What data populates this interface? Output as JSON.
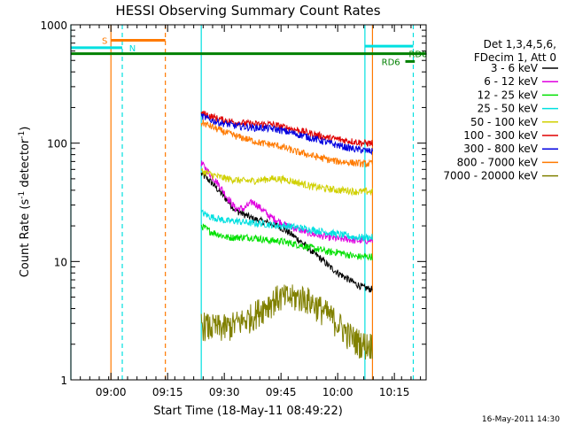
{
  "chart_data": {
    "type": "line",
    "title": "HESSI Observing Summary Count Rates",
    "xlabel": "Start Time (18-May-11 08:49:22)",
    "ylabel_parts": [
      "Count Rate (s",
      "-1",
      " detector",
      "-1",
      ")"
    ],
    "yscale": "log",
    "ylim": [
      1,
      1000
    ],
    "xlim_minutes": [
      0,
      94
    ],
    "x_ticks": [
      {
        "label": "09:00",
        "minute": 10.6
      },
      {
        "label": "09:15",
        "minute": 25.6
      },
      {
        "label": "09:30",
        "minute": 40.6
      },
      {
        "label": "09:45",
        "minute": 55.6
      },
      {
        "label": "10:00",
        "minute": 70.6
      },
      {
        "label": "10:15",
        "minute": 85.6
      }
    ],
    "y_ticks": [
      {
        "label": "1",
        "value": 1
      },
      {
        "label": "10",
        "value": 10
      },
      {
        "label": "100",
        "value": 100
      },
      {
        "label": "1000",
        "value": 1000
      }
    ],
    "legend_header": [
      "Det 1,3,4,5,6,",
      "FDecim 1, Att 0"
    ],
    "legend_position": "right",
    "data_start_minute": 34.5,
    "data_end_minute": 79.8,
    "series": [
      {
        "name": "3 - 6 keV",
        "color": "#000000",
        "values": [
          55,
          48,
          40,
          33,
          27,
          25,
          23,
          22,
          21,
          20,
          18,
          16,
          14,
          12,
          10.5,
          9,
          8,
          7.2,
          6.5,
          6,
          5.8
        ]
      },
      {
        "name": "6 - 12 keV",
        "color": "#e000e0",
        "values": [
          68,
          55,
          45,
          35,
          28,
          28,
          32,
          28,
          24,
          22,
          20,
          19,
          18,
          17,
          16.5,
          16,
          15.5,
          15.5,
          15,
          15,
          15
        ]
      },
      {
        "name": "12 - 25 keV",
        "color": "#00e000",
        "values": [
          20,
          18,
          17,
          16,
          16,
          16,
          16,
          15.5,
          15,
          15,
          14.5,
          14,
          13.5,
          13,
          12.5,
          12,
          12,
          11.5,
          11,
          11,
          11
        ]
      },
      {
        "name": "25 - 50 keV",
        "color": "#00e0e0",
        "values": [
          26,
          24,
          23,
          22,
          22,
          21.5,
          21,
          21,
          20.5,
          20,
          20,
          19.5,
          19,
          18.5,
          18,
          17.5,
          17,
          16.5,
          16,
          16,
          16
        ]
      },
      {
        "name": "50 - 100 keV",
        "color": "#d0d000",
        "values": [
          58,
          55,
          52,
          50,
          49,
          48,
          48,
          49,
          50,
          50,
          49,
          47,
          45,
          43,
          42,
          41,
          40,
          40,
          39,
          39,
          39
        ]
      },
      {
        "name": "100 - 300 keV",
        "color": "#e00000",
        "values": [
          180,
          170,
          160,
          155,
          150,
          148,
          145,
          145,
          145,
          140,
          135,
          130,
          125,
          120,
          115,
          110,
          108,
          105,
          103,
          100,
          100
        ]
      },
      {
        "name": "300 - 800 keV",
        "color": "#0000e0",
        "values": [
          170,
          158,
          150,
          145,
          140,
          138,
          135,
          135,
          133,
          130,
          125,
          120,
          115,
          110,
          105,
          100,
          96,
          92,
          89,
          87,
          85
        ]
      },
      {
        "name": "800 - 7000 keV",
        "color": "#ff7a00",
        "values": [
          150,
          140,
          130,
          122,
          115,
          110,
          105,
          100,
          98,
          95,
          90,
          85,
          82,
          78,
          75,
          72,
          70,
          69,
          68,
          67,
          67
        ]
      },
      {
        "name": "7000 - 20000 keV",
        "color": "#808000",
        "values": [
          3,
          2.8,
          2.8,
          2.8,
          3,
          3.2,
          3.5,
          4,
          4.5,
          5,
          5,
          5,
          5,
          4.5,
          4,
          3.5,
          3,
          2.5,
          2.2,
          2,
          2
        ]
      }
    ],
    "flag_lines": [
      {
        "label": "S",
        "color": "#ff7a00",
        "y_value": 740,
        "start_minute": 10.6,
        "end_minute": 25.0,
        "label_minute": 8.2
      },
      {
        "label": "N",
        "color": "#00e0e0",
        "y_value": 640,
        "start_minute": 0.0,
        "end_minute": 13.6,
        "label_minute": 15.4
      },
      {
        "label": "RD0",
        "color": "#008000",
        "y_value": 570,
        "start_minute": 0.0,
        "end_minute": 94.0,
        "label_minute": 89.4
      },
      {
        "label": "RD6",
        "color": "#008000",
        "y_value": 490,
        "start_minute": 88.5,
        "end_minute": 91.0,
        "label_minute": 82.2
      },
      {
        "label": "",
        "color": "#00e0e0",
        "y_value": 660,
        "start_minute": 77.8,
        "end_minute": 90.6,
        "label_minute": 0
      }
    ],
    "vertical_markers": [
      {
        "minute": 0.0,
        "color": "#00e0e0",
        "style": "solid"
      },
      {
        "minute": 13.6,
        "color": "#00e0e0",
        "style": "dashed"
      },
      {
        "minute": 10.6,
        "color": "#ff7a00",
        "style": "solid"
      },
      {
        "minute": 25.0,
        "color": "#ff7a00",
        "style": "dashed"
      },
      {
        "minute": 34.5,
        "color": "#00e0e0",
        "style": "solid"
      },
      {
        "minute": 77.8,
        "color": "#00e0e0",
        "style": "solid"
      },
      {
        "minute": 79.8,
        "color": "#ff7a00",
        "style": "solid"
      },
      {
        "minute": 90.6,
        "color": "#00e0e0",
        "style": "dashed"
      }
    ],
    "timestamp": "16-May-2011 14:30"
  }
}
